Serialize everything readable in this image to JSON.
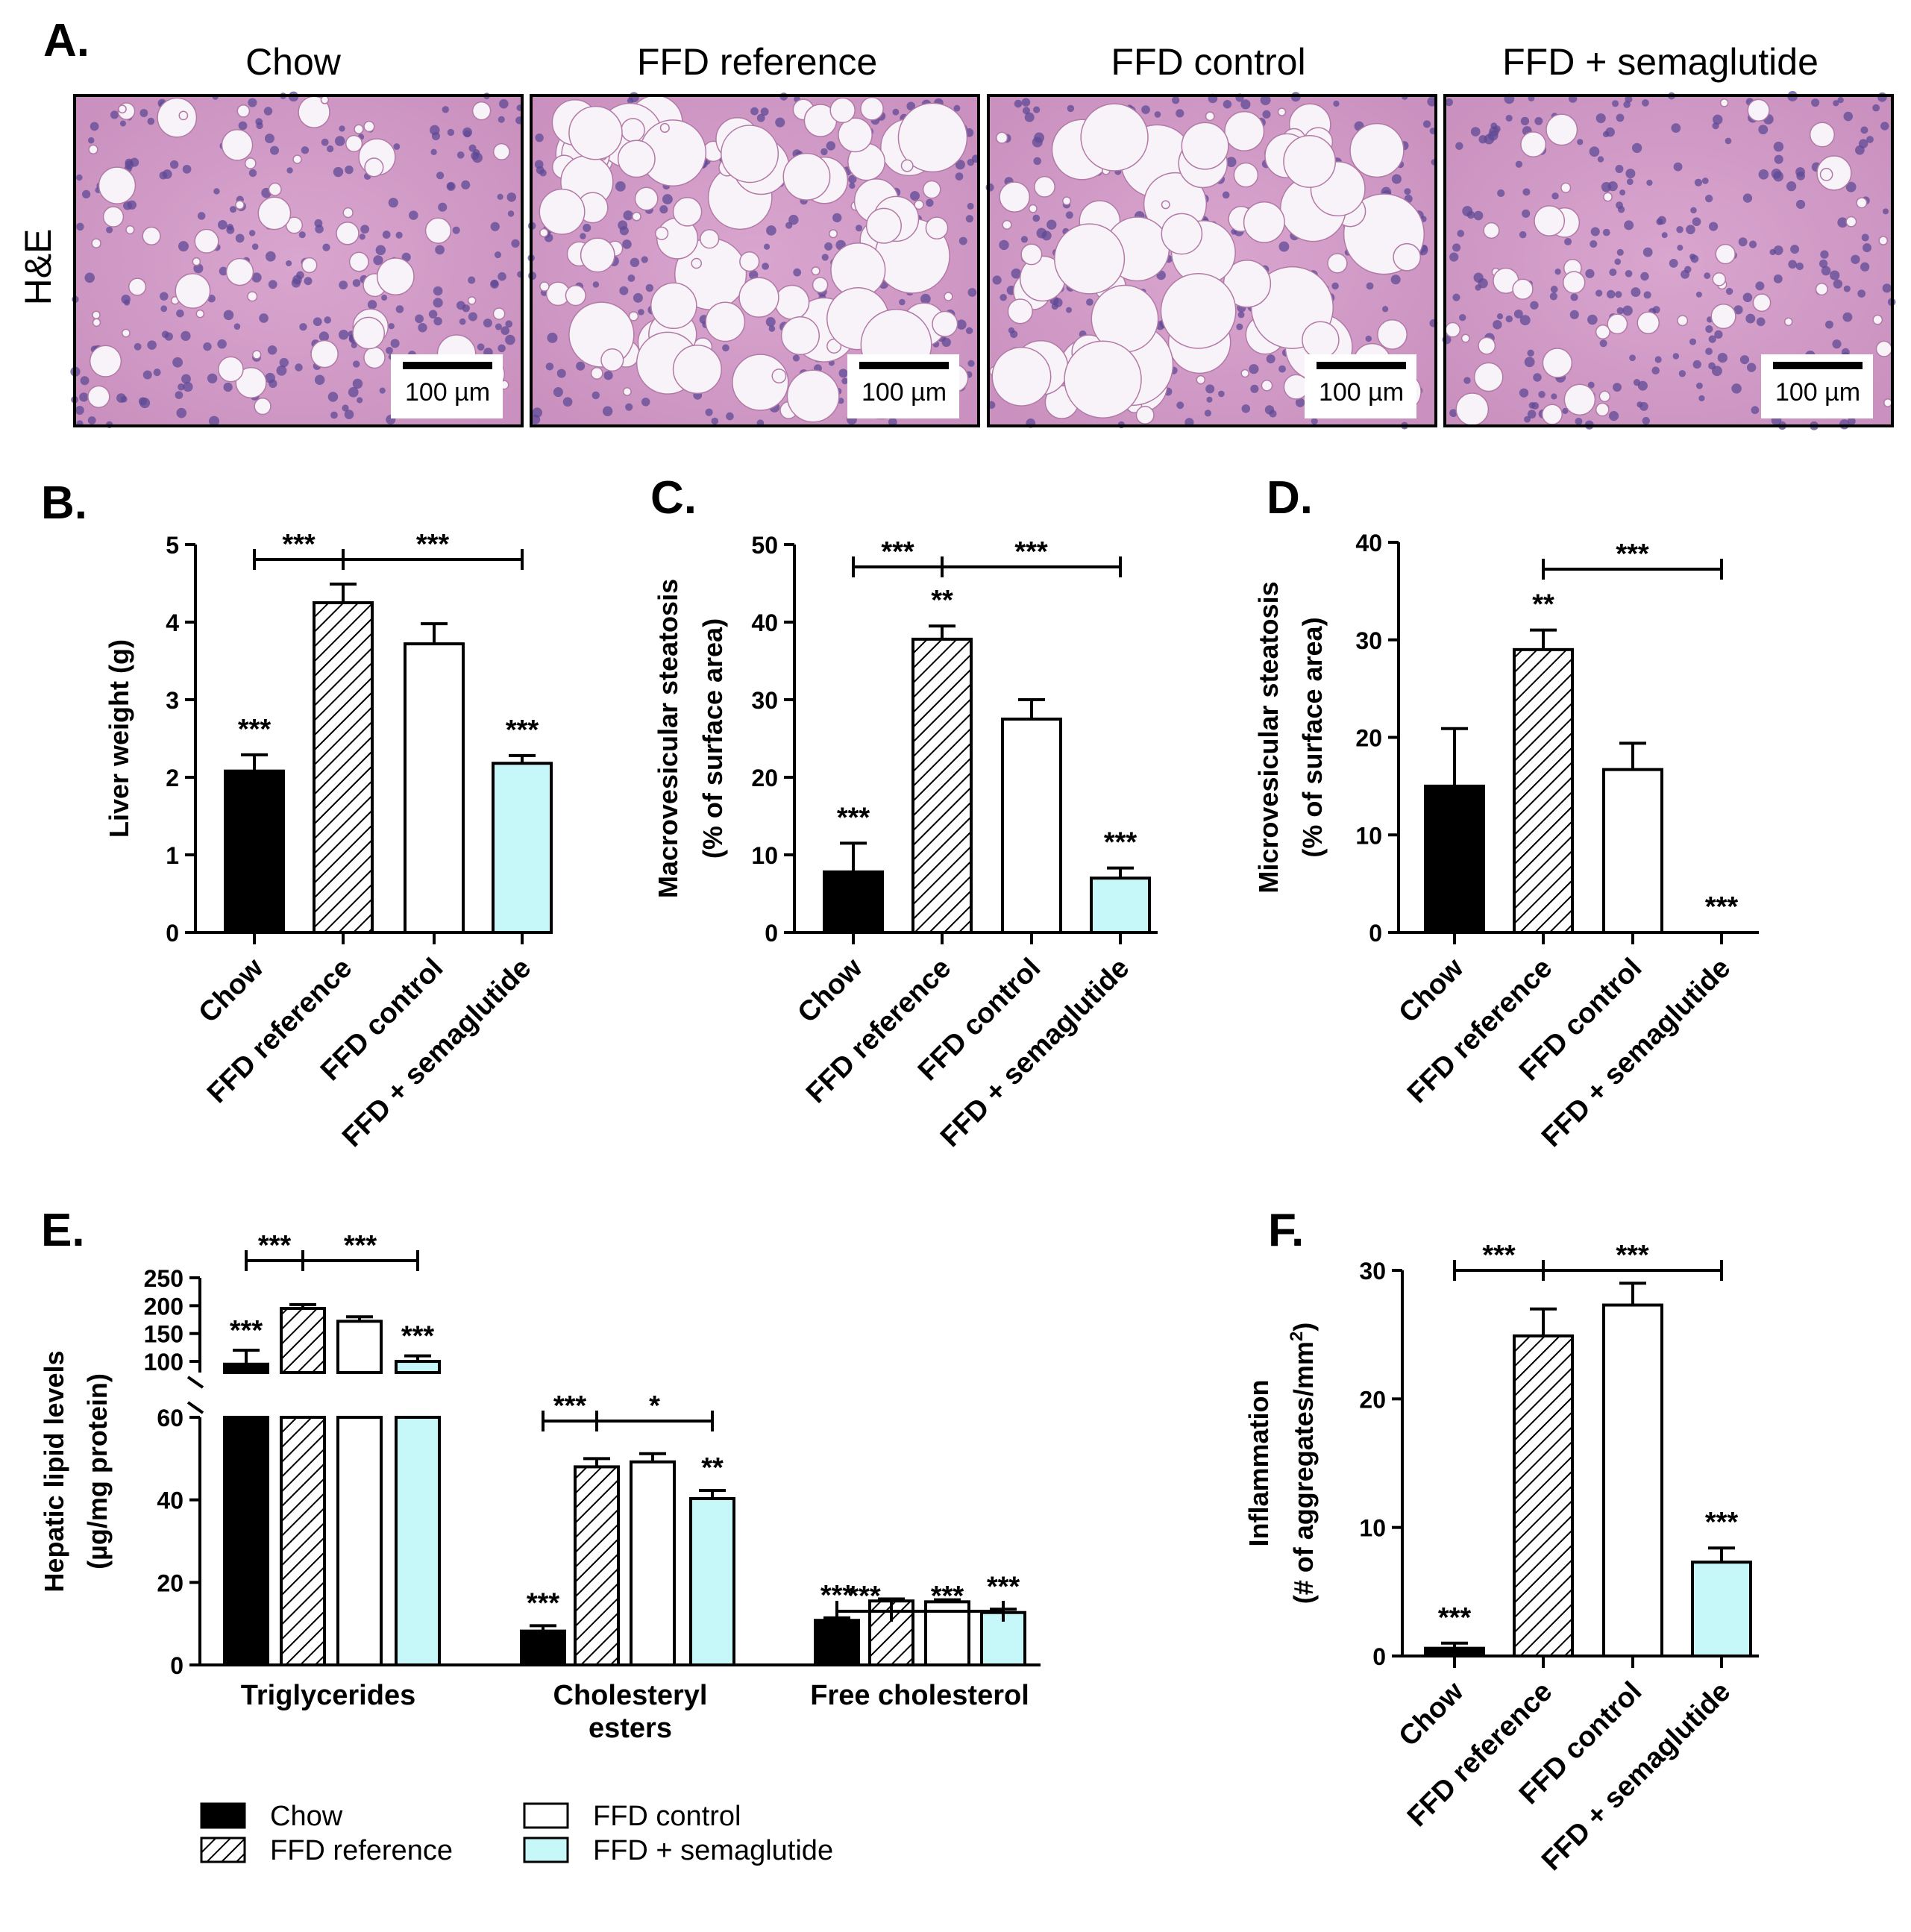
{
  "figure": {
    "panel_labels": [
      "A.",
      "B.",
      "C.",
      "D.",
      "E.",
      "F."
    ],
    "histology": {
      "stain_label": "H&E",
      "columns": [
        "Chow",
        "FFD reference",
        "FFD control",
        "FFD + semaglutide"
      ],
      "scale_bar": "100 µm"
    },
    "legend": [
      "Chow",
      "FFD reference",
      "FFD control",
      "FFD + semaglutide"
    ],
    "colors": {
      "chow": "#000000",
      "reference": "#ffffff",
      "control": "#ffffff",
      "semaglutide": "#c6f7f9",
      "stroke": "#000000"
    }
  },
  "chart_data": [
    {
      "panel": "B.",
      "type": "bar",
      "categories": [
        "Chow",
        "FFD reference",
        "FFD control",
        "FFD + semaglutide"
      ],
      "values": [
        2.08,
        4.25,
        3.72,
        2.18
      ],
      "errors": [
        0.21,
        0.24,
        0.26,
        0.1
      ],
      "ylabel": "Liver weight (g)",
      "ylim": [
        0,
        5
      ],
      "yticks": [
        0,
        1,
        2,
        3,
        4,
        5
      ],
      "bar_annotations": [
        "***",
        "",
        "",
        "***"
      ],
      "brackets": [
        {
          "from": 0,
          "to": 1,
          "label": "***"
        },
        {
          "from": 1,
          "to": 3,
          "label": "***"
        }
      ]
    },
    {
      "panel": "C.",
      "type": "bar",
      "categories": [
        "Chow",
        "FFD reference",
        "FFD control",
        "FFD + semaglutide"
      ],
      "values": [
        7.8,
        37.8,
        27.5,
        7.0
      ],
      "errors": [
        3.7,
        1.7,
        2.5,
        1.3
      ],
      "ylabel": "Macrovesicular steatosis (% of surface area)",
      "ylabel_lines": [
        "Macrovesicular steatosis",
        "(% of surface area)"
      ],
      "ylim": [
        0,
        50
      ],
      "yticks": [
        0,
        10,
        20,
        30,
        40,
        50
      ],
      "bar_annotations": [
        "***",
        "**",
        "",
        "***"
      ],
      "brackets": [
        {
          "from": 0,
          "to": 1,
          "label": "***"
        },
        {
          "from": 1,
          "to": 3,
          "label": "***"
        }
      ]
    },
    {
      "panel": "D.",
      "type": "bar",
      "categories": [
        "Chow",
        "FFD reference",
        "FFD control",
        "FFD + semaglutide"
      ],
      "values": [
        15.0,
        29.0,
        16.7,
        0.0
      ],
      "errors": [
        5.9,
        2.0,
        2.7,
        0.0
      ],
      "ylabel": "Microvesicular steatosis (% of surface area)",
      "ylabel_lines": [
        "Microvesicular steatosis",
        "(% of surface area)"
      ],
      "ylim": [
        0,
        40
      ],
      "yticks": [
        0,
        10,
        20,
        30,
        40
      ],
      "bar_annotations": [
        "",
        "**",
        "",
        "***"
      ],
      "brackets": [
        {
          "from": 1,
          "to": 3,
          "label": "***"
        }
      ]
    },
    {
      "panel": "E.",
      "type": "bar",
      "categories": [
        "Triglycerides",
        "Cholesteryl esters",
        "Free cholesterol"
      ],
      "category_lines": [
        [
          "Triglycerides"
        ],
        [
          "Cholesteryl",
          "esters"
        ],
        [
          "Free cholesterol"
        ]
      ],
      "series": [
        {
          "name": "Chow",
          "values": [
            95,
            8.2,
            10.8
          ],
          "errors": [
            25,
            1.3,
            0.6
          ]
        },
        {
          "name": "FFD reference",
          "values": [
            195,
            48,
            15.5
          ],
          "errors": [
            7,
            2,
            0.5
          ]
        },
        {
          "name": "FFD control",
          "values": [
            172,
            49.2,
            15.3
          ],
          "errors": [
            8,
            2,
            0.5
          ]
        },
        {
          "name": "FFD + semaglutide",
          "values": [
            100,
            40.3,
            12.7
          ],
          "errors": [
            10,
            2,
            0.8
          ]
        }
      ],
      "ylabel": "Hepatic lipid levels (µg/mg protein)",
      "ylabel_lines": [
        "Hepatic lipid levels",
        "(µg/mg protein)"
      ],
      "y_axis_broken": true,
      "ylim_lower": [
        0,
        60
      ],
      "yticks_lower": [
        0,
        20,
        40,
        60
      ],
      "ylim_upper": [
        80,
        250
      ],
      "yticks_upper": [
        100,
        150,
        200,
        250
      ],
      "bar_annotations": [
        [
          "***",
          "",
          "",
          "***"
        ],
        [
          "***",
          "",
          "",
          "**"
        ],
        [
          "***",
          "",
          "",
          "***"
        ]
      ],
      "brackets": [
        [
          {
            "from": 0,
            "to": 1,
            "label": "***"
          },
          {
            "from": 1,
            "to": 3,
            "label": "***"
          }
        ],
        [
          {
            "from": 0,
            "to": 1,
            "label": "***"
          },
          {
            "from": 1,
            "to": 3,
            "label": "*"
          }
        ],
        [
          {
            "from": 0,
            "to": 1,
            "label": "***"
          },
          {
            "from": 1,
            "to": 3,
            "label": "***"
          }
        ]
      ]
    },
    {
      "panel": "F.",
      "type": "bar",
      "categories": [
        "Chow",
        "FFD reference",
        "FFD control",
        "FFD + semaglutide"
      ],
      "values": [
        0.6,
        24.9,
        27.3,
        7.3
      ],
      "errors": [
        0.4,
        2.1,
        1.7,
        1.1
      ],
      "ylabel_lines": [
        "Inflammation",
        "(# of aggregates/mm",
        "2",
        ")"
      ],
      "ylim": [
        0,
        30
      ],
      "yticks": [
        0,
        10,
        20,
        30
      ],
      "bar_annotations": [
        "***",
        "",
        "",
        "***"
      ],
      "brackets": [
        {
          "from": 0,
          "to": 1,
          "label": "***"
        },
        {
          "from": 1,
          "to": 3,
          "label": "***"
        }
      ]
    }
  ]
}
